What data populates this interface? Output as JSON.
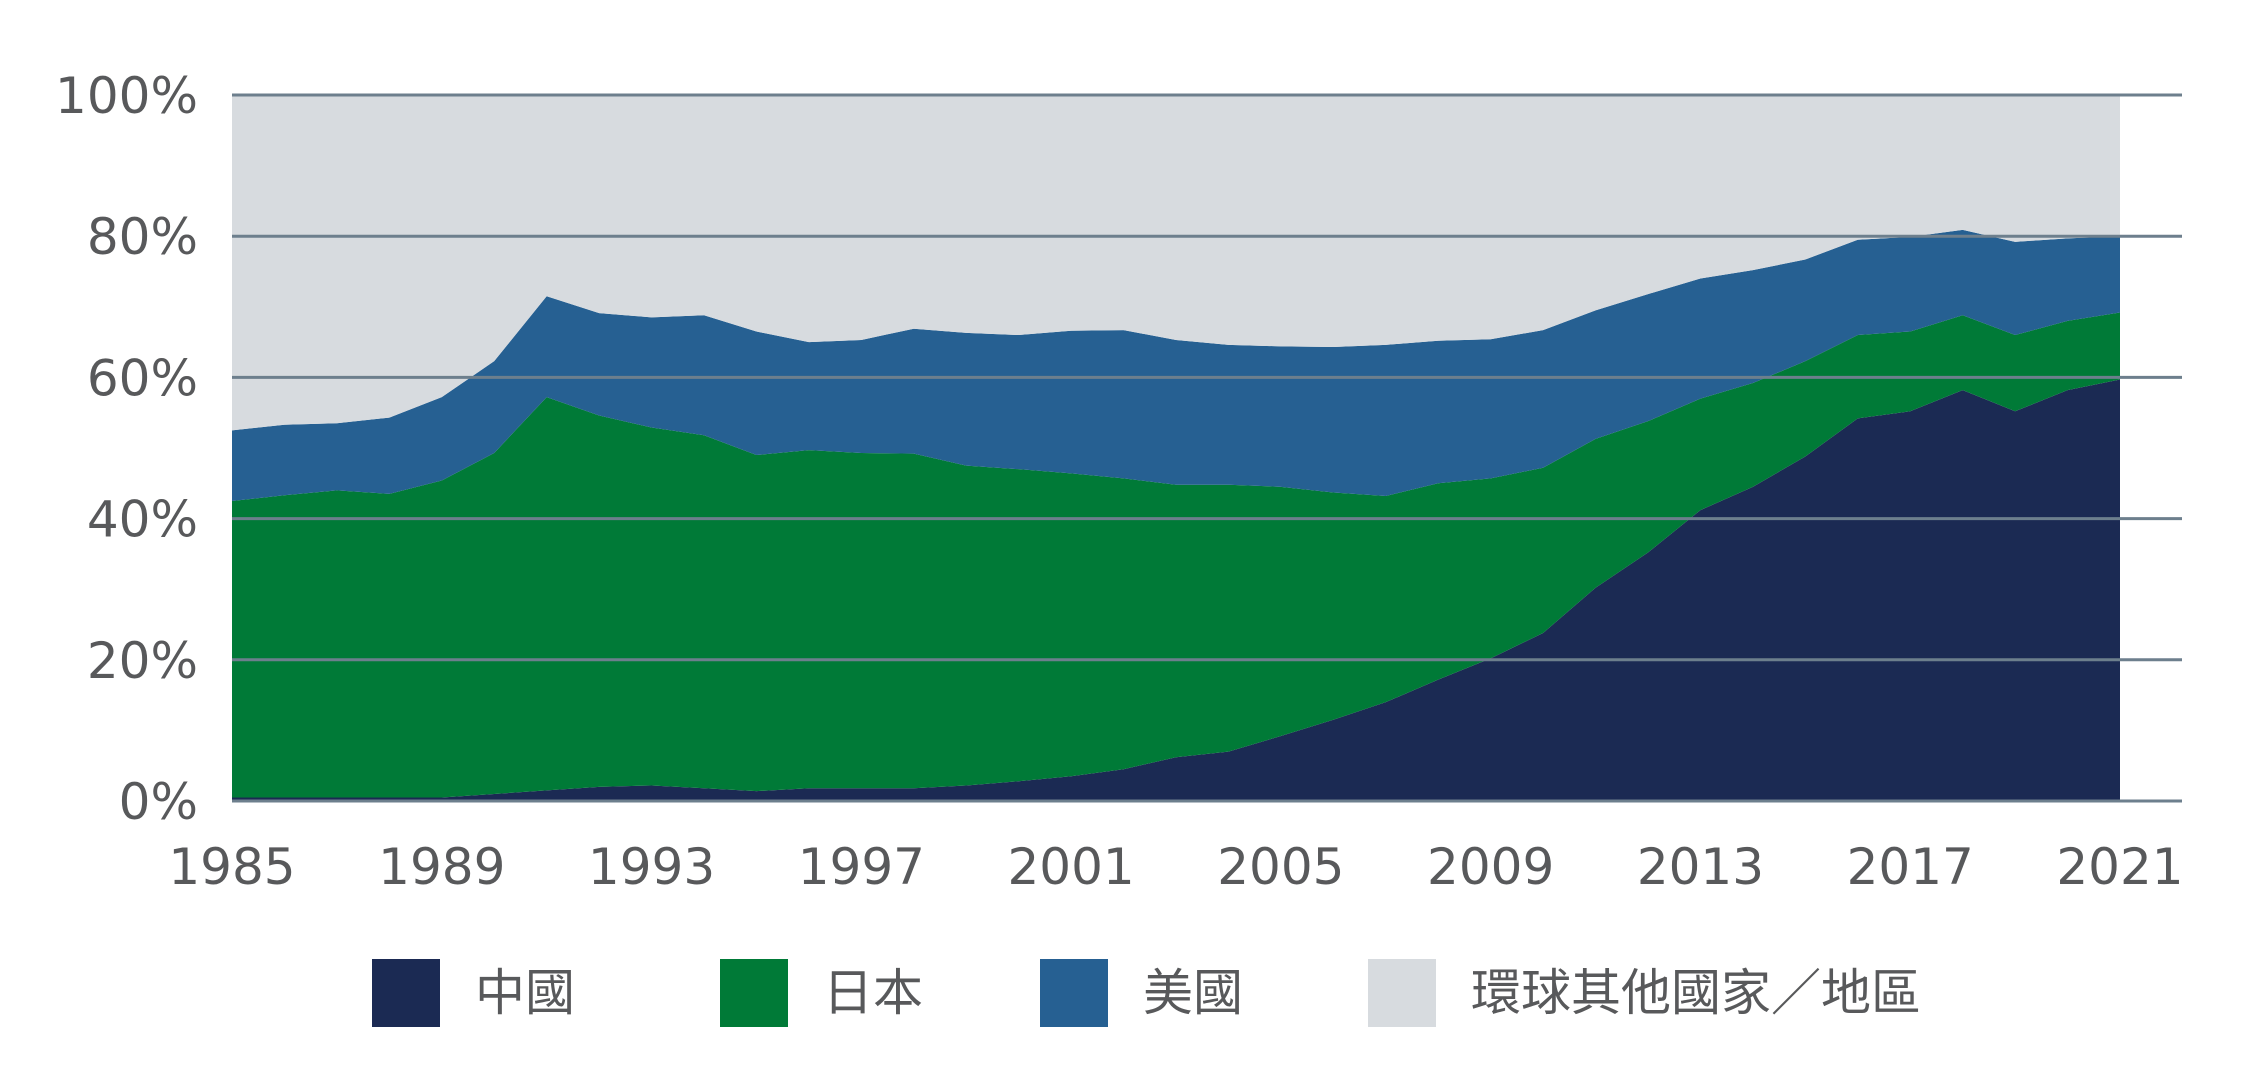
{
  "chart_data": {
    "type": "area",
    "stacked": true,
    "x": [
      1985,
      1986,
      1987,
      1988,
      1989,
      1990,
      1991,
      1992,
      1993,
      1994,
      1995,
      1996,
      1997,
      1998,
      1999,
      2000,
      2001,
      2002,
      2003,
      2004,
      2005,
      2006,
      2007,
      2008,
      2009,
      2010,
      2011,
      2012,
      2013,
      2014,
      2015,
      2016,
      2017,
      2018,
      2019,
      2020,
      2021
    ],
    "xticks": [
      1985,
      1989,
      1993,
      1997,
      2001,
      2005,
      2009,
      2013,
      2017,
      2021
    ],
    "xtick_labels": [
      "1985",
      "1989",
      "1993",
      "1997",
      "2001",
      "2005",
      "2009",
      "2013",
      "2017",
      "2021"
    ],
    "yticks": [
      0,
      20,
      40,
      60,
      80,
      100
    ],
    "ytick_labels": [
      "0%",
      "20%",
      "40%",
      "60%",
      "80%",
      "100%"
    ],
    "ylim": [
      0,
      100
    ],
    "grid": "horizontal",
    "legend_position": "bottom",
    "series": [
      {
        "name": "中國",
        "color": "#1b2a53",
        "values": [
          0.5,
          0.5,
          0.5,
          0.5,
          0.5,
          1.0,
          1.5,
          2.0,
          2.2,
          1.8,
          1.4,
          1.8,
          1.8,
          1.8,
          2.2,
          2.8,
          3.5,
          4.5,
          6.2,
          7.0,
          9.2,
          11.5,
          14.0,
          17.2,
          20.2,
          23.8,
          30.2,
          35.2,
          41.2,
          44.5,
          48.8,
          54.2,
          55.2,
          58.2,
          55.2,
          58.2,
          59.7
        ]
      },
      {
        "name": "日本",
        "color": "#007a37",
        "values": [
          42.0,
          42.8,
          43.5,
          43.0,
          44.9,
          48.3,
          55.7,
          52.6,
          50.7,
          50.0,
          47.6,
          47.9,
          47.5,
          47.4,
          45.3,
          44.2,
          42.9,
          41.2,
          38.6,
          37.8,
          35.3,
          32.2,
          29.2,
          27.8,
          25.5,
          23.4,
          21.1,
          18.6,
          15.8,
          14.7,
          13.5,
          11.8,
          11.3,
          10.6,
          10.8,
          9.8,
          9.5
        ]
      },
      {
        "name": "美國",
        "color": "#266092",
        "values": [
          10.0,
          10.0,
          9.5,
          10.8,
          11.8,
          13.0,
          14.3,
          14.5,
          15.6,
          17.0,
          17.5,
          15.3,
          16.0,
          17.7,
          18.8,
          19.0,
          20.2,
          21.0,
          20.5,
          19.8,
          19.9,
          20.6,
          21.4,
          20.2,
          19.7,
          19.5,
          18.2,
          18.0,
          17.0,
          16.0,
          14.4,
          13.5,
          13.4,
          12.1,
          13.2,
          11.7,
          10.8
        ]
      },
      {
        "name": "環球其他國家／地區",
        "color": "#d7dbdf",
        "values": [
          47.5,
          46.7,
          46.5,
          45.7,
          42.8,
          37.7,
          28.5,
          30.9,
          31.5,
          31.2,
          33.5,
          35.0,
          34.7,
          33.1,
          33.7,
          34.0,
          33.4,
          33.3,
          34.7,
          35.4,
          35.6,
          35.7,
          35.4,
          34.8,
          34.6,
          33.3,
          30.5,
          28.2,
          26.0,
          24.8,
          23.3,
          20.5,
          20.1,
          19.1,
          20.8,
          20.3,
          20.0
        ]
      }
    ]
  }
}
